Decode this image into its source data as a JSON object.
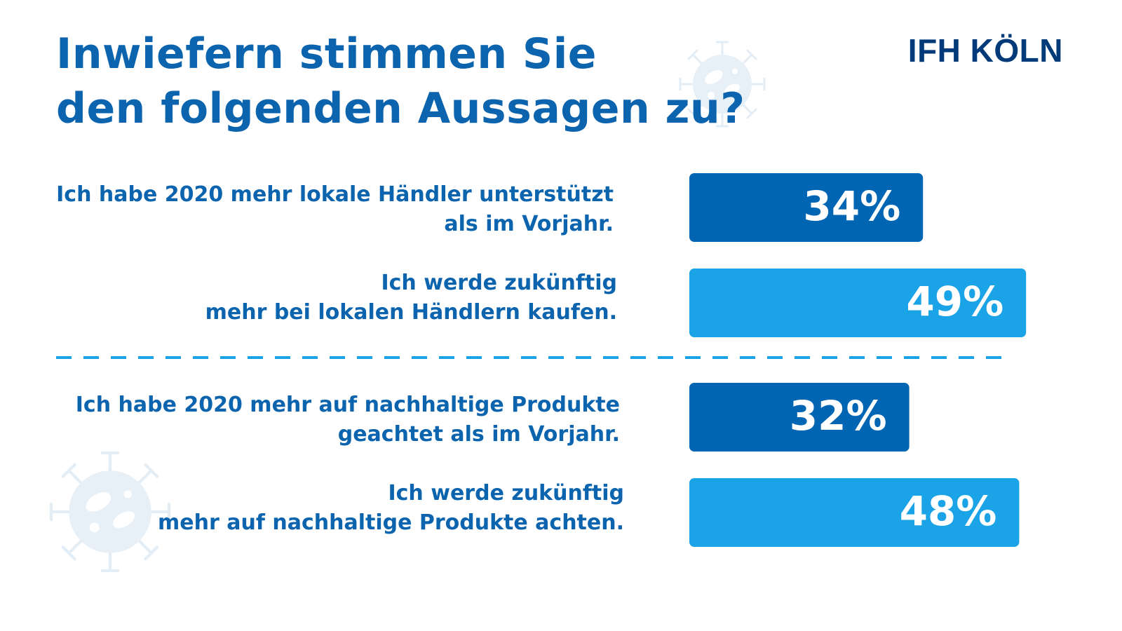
{
  "title_lines": [
    "Inwiefern stimmen Sie",
    "den folgenden Aussagen zu?"
  ],
  "logo_text": "IFH KÖLN",
  "colors": {
    "title": "#0b64ad",
    "logo": "#003a78",
    "bar_past": "#0066b3",
    "bar_future": "#1aa3e6",
    "divider": "#1aa3e6",
    "virus": "#e6eef6"
  },
  "icons": [
    "virus-icon",
    "virus-icon"
  ],
  "chart_data": {
    "type": "bar",
    "orientation": "horizontal",
    "title": "Inwiefern stimmen Sie den folgenden Aussagen zu?",
    "unit": "%",
    "xlim": [
      0,
      100
    ],
    "grid": false,
    "legend": "none",
    "groups": [
      {
        "rows": [
          {
            "label_lines": [
              "Ich habe 2020 mehr lokale Händler unterstützt",
              "als im Vorjahr."
            ],
            "value": 34,
            "value_label": "34%",
            "color": "#0066b3"
          },
          {
            "label_lines": [
              "Ich werde zukünftig",
              "mehr bei lokalen Händlern kaufen."
            ],
            "value": 49,
            "value_label": "49%",
            "color": "#1aa3e6"
          }
        ]
      },
      {
        "rows": [
          {
            "label_lines": [
              "Ich habe 2020 mehr auf nachhaltige Produkte",
              "geachtet als im Vorjahr."
            ],
            "value": 32,
            "value_label": "32%",
            "color": "#0066b3"
          },
          {
            "label_lines": [
              "Ich werde zukünftig",
              "mehr auf nachhaltige Produkte achten."
            ],
            "value": 48,
            "value_label": "48%",
            "color": "#1aa3e6"
          }
        ]
      }
    ]
  }
}
